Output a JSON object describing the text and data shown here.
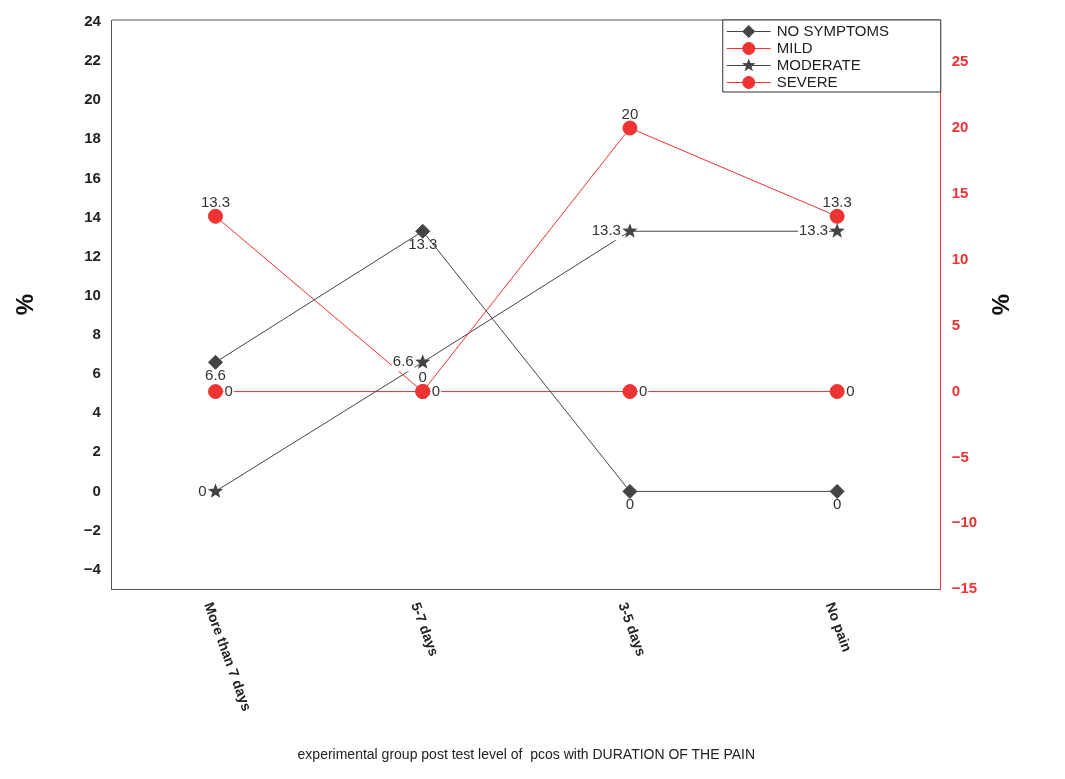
{
  "chart_data": {
    "type": "line",
    "xlabel": "experimental group post test level of  pcos with DURATION OF THE PAIN",
    "ylabel": "%",
    "y2label": "%",
    "categories": [
      "More than 7 days",
      "5-7 days",
      "3-5 days",
      "No pain"
    ],
    "series": [
      {
        "name": "NO SYMPTOMS",
        "color": "#444444",
        "marker": "diamond",
        "values": [
          6.6,
          13.3,
          0,
          0
        ]
      },
      {
        "name": "MILD",
        "color": "#ee3333",
        "marker": "circle",
        "axis": "y2",
        "values": [
          13.3,
          0,
          20,
          13.3
        ]
      },
      {
        "name": "MODERATE",
        "color": "#444444",
        "marker": "star",
        "values": [
          0,
          6.6,
          13.3,
          13.3
        ]
      },
      {
        "name": "SEVERE",
        "color": "#ee3333",
        "marker": "circle",
        "axis": "y2",
        "values": [
          0,
          0,
          0,
          0
        ]
      }
    ],
    "ylim": [
      -5,
      24.1
    ],
    "yticks": [
      -4,
      -2,
      0,
      2,
      4,
      6,
      8,
      10,
      12,
      14,
      16,
      18,
      20,
      22,
      24
    ],
    "y2lim": [
      -15,
      28.2
    ],
    "y2ticks": [
      -15,
      -10,
      -5,
      0,
      5,
      10,
      15,
      20,
      25
    ],
    "data_labels": true,
    "grid": false,
    "legend": "top right"
  }
}
